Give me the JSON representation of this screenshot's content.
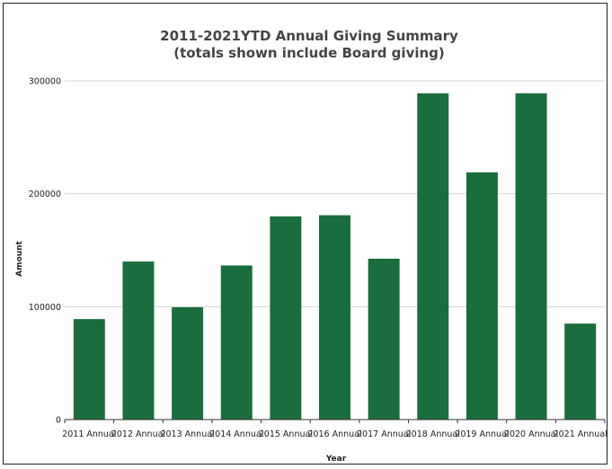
{
  "chart_data": {
    "type": "bar",
    "title": "2011-2021YTD Annual Giving Summary",
    "subtitle": "(totals shown include Board giving)",
    "xlabel": "Year",
    "ylabel": "Amount",
    "categories": [
      "2011 Annual",
      "2012 Annual",
      "2013 Annual",
      "2014 Annual",
      "2015 Annual",
      "2016 Annual",
      "2017 Annual",
      "2018 Annual",
      "2019 Annual",
      "2020 Annual",
      "2021 Annual"
    ],
    "values": [
      89000,
      140000,
      99500,
      136500,
      180000,
      181000,
      142500,
      289000,
      219000,
      289000,
      85000
    ],
    "ylim": [
      0,
      300000
    ],
    "yticks": [
      "0",
      "100000",
      "200000",
      "300000"
    ],
    "grid": true,
    "legend": "none",
    "bar_color": "#1a6d3c"
  }
}
